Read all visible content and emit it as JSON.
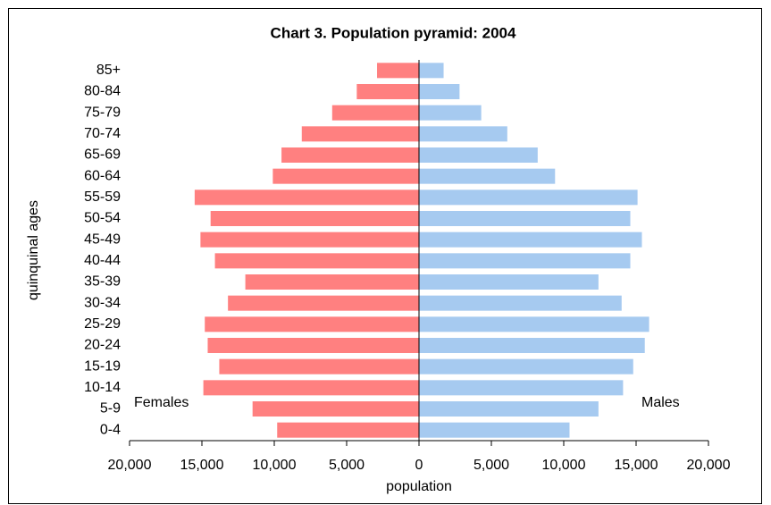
{
  "chart_data": {
    "type": "bar",
    "orientation": "horizontal",
    "title": "Chart 3.  Population pyramid: 2004",
    "x_label": "population",
    "y_label": "quinquinal ages",
    "categories": [
      "0-4",
      "5-9",
      "10-14",
      "15-19",
      "20-24",
      "25-29",
      "30-34",
      "35-39",
      "40-44",
      "45-49",
      "50-54",
      "55-59",
      "60-64",
      "65-69",
      "70-74",
      "75-79",
      "80-84",
      "85+"
    ],
    "series": [
      {
        "name": "Females",
        "color": "#ff8080",
        "values": [
          -9800,
          -11500,
          -14900,
          -13800,
          -14600,
          -14800,
          -13200,
          -12000,
          -14100,
          -15100,
          -14400,
          -15500,
          -10100,
          -9500,
          -8100,
          -6000,
          -4300,
          -2900
        ]
      },
      {
        "name": "Males",
        "color": "#a6caf0",
        "values": [
          10400,
          12400,
          14100,
          14800,
          15600,
          15900,
          14000,
          12400,
          14600,
          15400,
          14600,
          15100,
          9400,
          8200,
          6100,
          4300,
          2800,
          1700
        ]
      }
    ],
    "xlim": [
      -20000,
      20000
    ],
    "xticks": [
      {
        "value": -20000,
        "label": "20,000"
      },
      {
        "value": -15000,
        "label": "15,000"
      },
      {
        "value": -10000,
        "label": "10,000"
      },
      {
        "value": -5000,
        "label": "5,000"
      },
      0,
      {
        "value": 5000,
        "label": "5,000"
      },
      {
        "value": 10000,
        "label": "10,000"
      },
      {
        "value": 15000,
        "label": "15,000"
      },
      {
        "value": 20000,
        "label": "20,000"
      }
    ],
    "grid": false
  }
}
